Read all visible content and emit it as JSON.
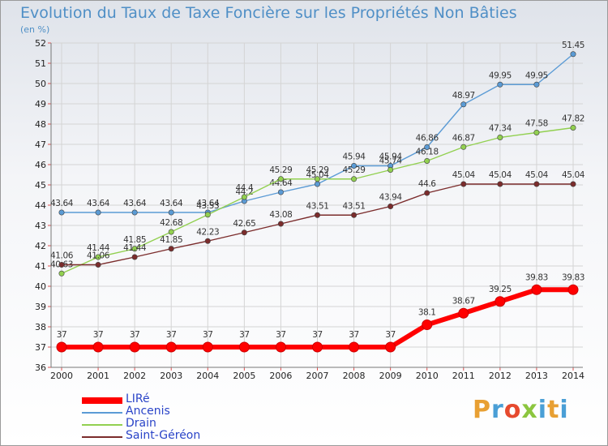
{
  "header": {
    "title": "Evolution du Taux de Taxe Foncière sur les Propriétés Non Bâties",
    "unit": "(en %)"
  },
  "logo": {
    "text": "Proxiti",
    "colors": [
      "#e8a033",
      "#4a9fd6",
      "#e64a2e",
      "#8cc63f",
      "#4a9fd6",
      "#e8a033",
      "#4a9fd6"
    ]
  },
  "legend": {
    "position": "bottom-left",
    "items": [
      "LIRé",
      "Ancenis",
      "Drain",
      "Saint-Géréon"
    ]
  },
  "chart_data": {
    "type": "line",
    "title": "Evolution du Taux de Taxe Foncière sur les Propriétés Non Bâties",
    "ylabel": "(en %)",
    "xlabel": "",
    "ylim": [
      36,
      52
    ],
    "grid": true,
    "categories": [
      "2000",
      "2001",
      "2002",
      "2003",
      "2004",
      "2005",
      "2006",
      "2007",
      "2008",
      "2009",
      "2010",
      "2011",
      "2012",
      "2013",
      "2014"
    ],
    "series": [
      {
        "name": "LIRé",
        "color": "#ff0000",
        "values": [
          37,
          37,
          37,
          37,
          37,
          37,
          37,
          37,
          37,
          37,
          38.1,
          38.67,
          39.25,
          39.83,
          39.83
        ],
        "labels": [
          "37",
          "37",
          "37",
          "37",
          "37",
          "37",
          "37",
          "37",
          "37",
          "37",
          "38.1",
          "38.67",
          "39.25",
          "39.83",
          "39.83"
        ]
      },
      {
        "name": "Ancenis",
        "color": "#5b9bd5",
        "values": [
          43.64,
          43.64,
          43.64,
          43.64,
          43.64,
          44.2,
          44.64,
          45.04,
          45.94,
          45.94,
          46.86,
          48.97,
          49.95,
          49.95,
          51.45
        ],
        "labels": [
          "43.64",
          "43.64",
          "43.64",
          "43.64",
          "43.64",
          "44.2",
          "44.64",
          "45.04",
          "45.94",
          "45.94",
          "46.86",
          "48.97",
          "49.95",
          "49.95",
          "51.45"
        ]
      },
      {
        "name": "Drain",
        "color": "#92d050",
        "values": [
          40.63,
          41.44,
          41.85,
          42.68,
          43.53,
          44.4,
          45.29,
          45.29,
          45.29,
          45.74,
          46.18,
          46.87,
          47.34,
          47.58,
          47.82
        ],
        "labels": [
          "40.63",
          "41.44",
          "41.85",
          "42.68",
          "43.53",
          "44.4",
          "45.29",
          "45.29",
          "45.29",
          "45.74",
          "46.18",
          "46.87",
          "47.34",
          "47.58",
          "47.82"
        ]
      },
      {
        "name": "Saint-Géréon",
        "color": "#7b2c2c",
        "values": [
          41.06,
          41.06,
          41.44,
          41.85,
          42.23,
          42.65,
          43.08,
          43.51,
          43.51,
          43.94,
          44.6,
          45.04,
          45.04,
          45.04,
          45.04
        ],
        "labels": [
          "41.06",
          "41.06",
          "41.44",
          "41.85",
          "42.23",
          "42.65",
          "43.08",
          "43.51",
          "43.51",
          "43.94",
          "44.6",
          "45.04",
          "45.04",
          "45.04",
          "45.04"
        ]
      }
    ]
  }
}
